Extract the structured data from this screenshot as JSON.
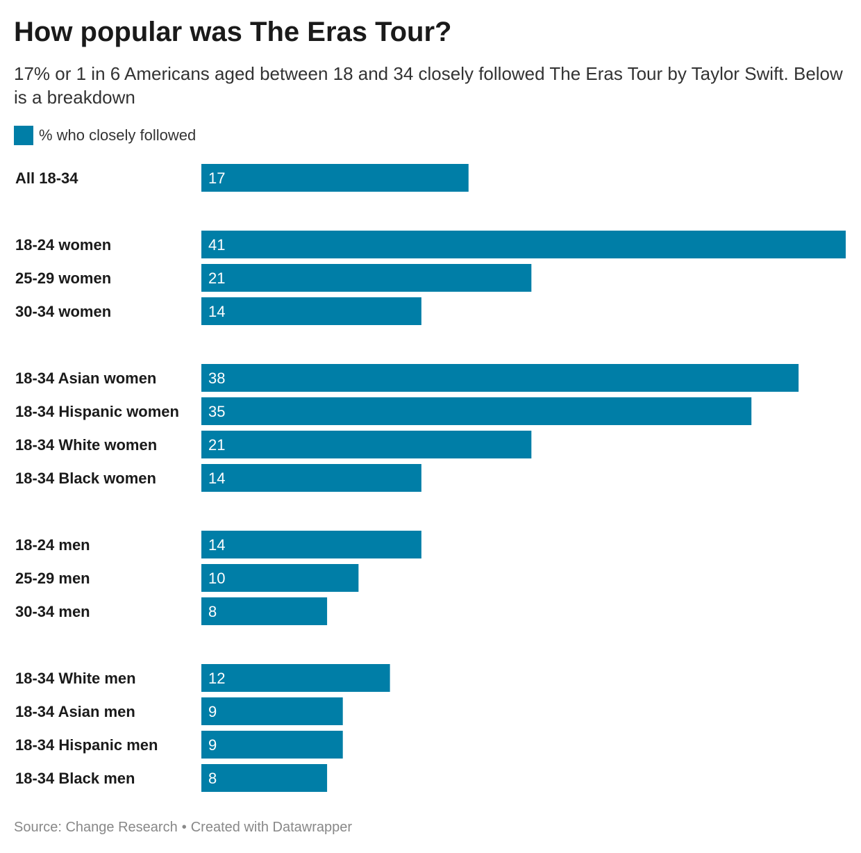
{
  "header": {
    "title": "How popular was The Eras Tour?",
    "subtitle": "17% or 1 in 6 Americans aged between 18 and 34 closely followed The Eras Tour by Taylor Swift. Below is a breakdown"
  },
  "legend": {
    "label": "% who closely followed",
    "color": "#007ea7"
  },
  "footer": {
    "source": "Source: Change Research",
    "separator": "•",
    "credit": "Created with Datawrapper"
  },
  "chart_data": {
    "type": "bar",
    "orientation": "horizontal",
    "series": [
      {
        "name": "% who closely followed",
        "color": "#007ea7",
        "groups": [
          {
            "categories": [
              "All 18-34"
            ],
            "values": [
              17
            ]
          },
          {
            "categories": [
              "18-24 women",
              "25-29 women",
              "30-34 women"
            ],
            "values": [
              41,
              21,
              14
            ]
          },
          {
            "categories": [
              "18-34 Asian women",
              "18-34 Hispanic women",
              "18-34 White women",
              "18-34 Black women"
            ],
            "values": [
              38,
              35,
              21,
              14
            ]
          },
          {
            "categories": [
              "18-24 men",
              "25-29 men",
              "30-34 men"
            ],
            "values": [
              14,
              10,
              8
            ]
          },
          {
            "categories": [
              "18-34 White men",
              "18-34 Asian men",
              "18-34 Hispanic men",
              "18-34 Black men"
            ],
            "values": [
              12,
              9,
              9,
              8
            ]
          }
        ]
      }
    ],
    "xlim": [
      0,
      41
    ],
    "grid": false,
    "value_labels": "inside-start"
  }
}
